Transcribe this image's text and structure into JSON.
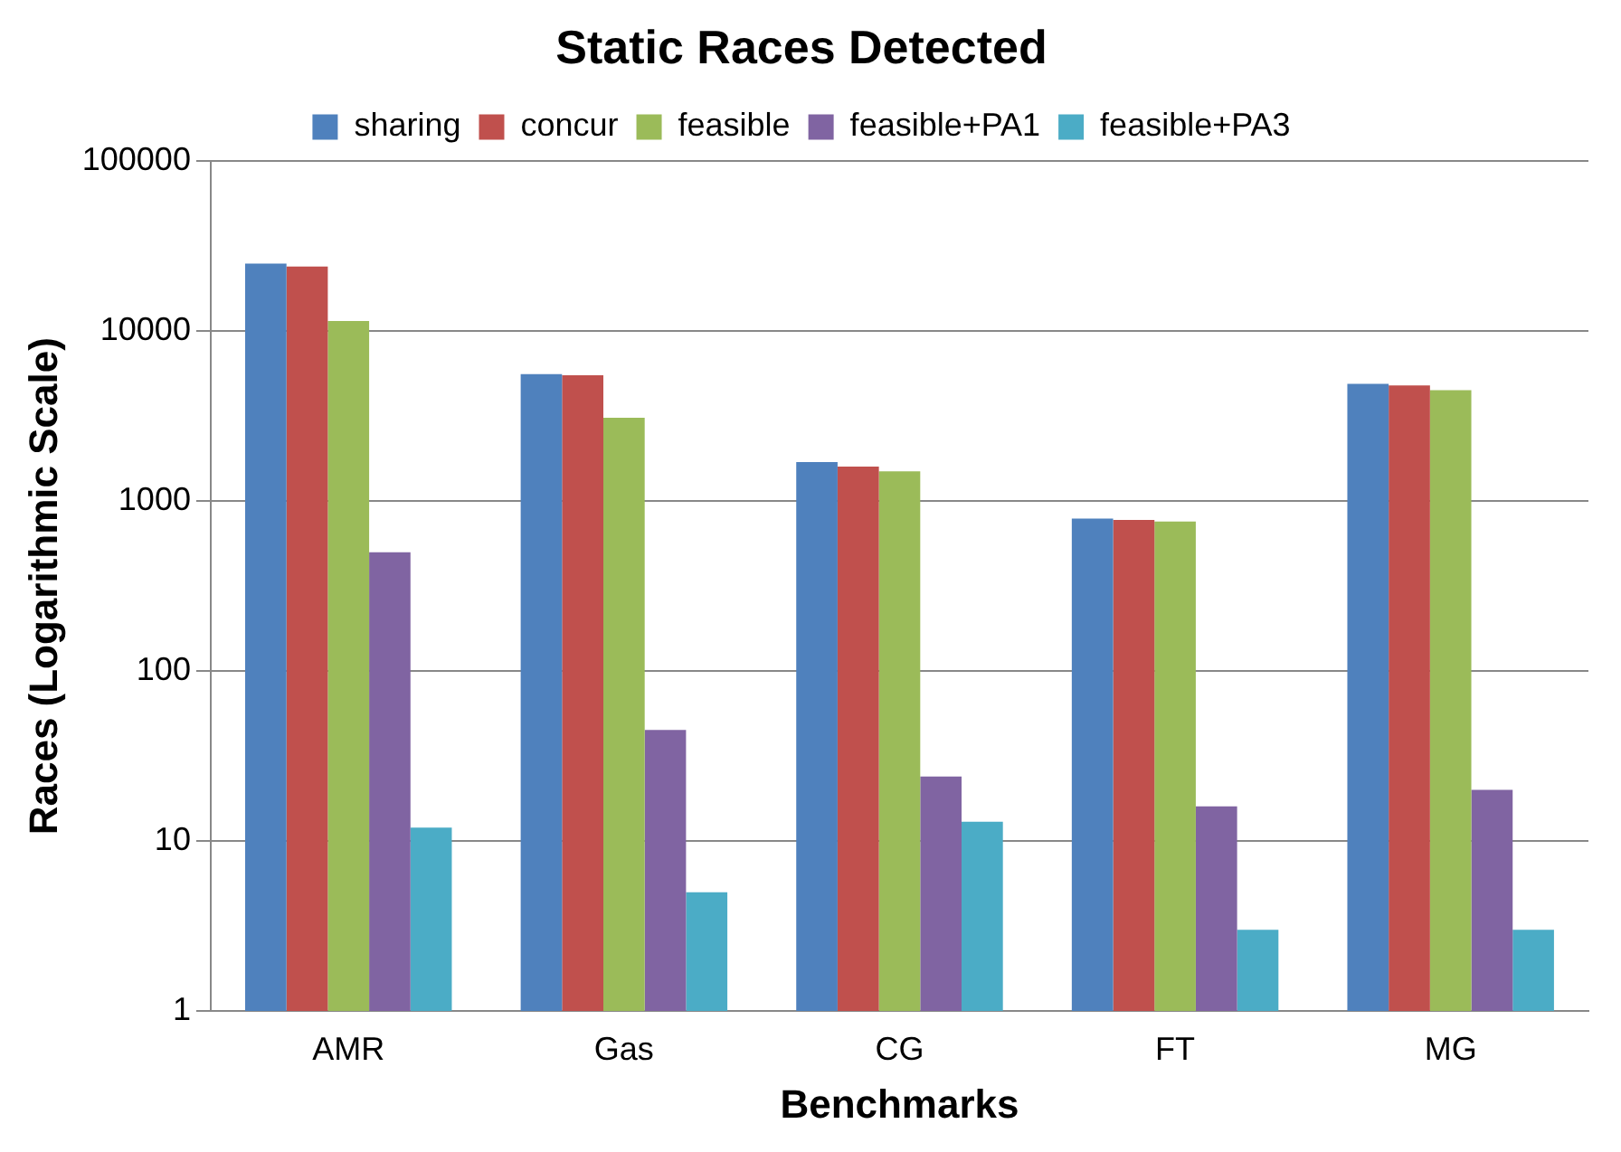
{
  "chart_data": {
    "type": "bar",
    "title": "Static Races Detected",
    "xlabel": "Benchmarks",
    "ylabel": "Races (Logarithmic Scale)",
    "categories": [
      "AMR",
      "Gas",
      "CG",
      "FT",
      "MG"
    ],
    "series": [
      {
        "name": "sharing",
        "color": "#4f81bd",
        "values": [
          25000,
          5600,
          1700,
          790,
          4900
        ]
      },
      {
        "name": "concur",
        "color": "#c0504d",
        "values": [
          24000,
          5500,
          1600,
          775,
          4800
        ]
      },
      {
        "name": "feasible",
        "color": "#9bbb59",
        "values": [
          11500,
          3100,
          1500,
          760,
          4500
        ]
      },
      {
        "name": "feasible+PA1",
        "color": "#8064a2",
        "values": [
          500,
          45,
          24,
          16,
          20
        ]
      },
      {
        "name": "feasible+PA3",
        "color": "#4bacc6",
        "values": [
          12,
          5,
          13,
          3,
          3
        ]
      }
    ],
    "log": true,
    "ylim": [
      1,
      100000
    ],
    "yticks": [
      1,
      10,
      100,
      1000,
      10000,
      100000
    ],
    "grid": "y",
    "legend": "top"
  }
}
